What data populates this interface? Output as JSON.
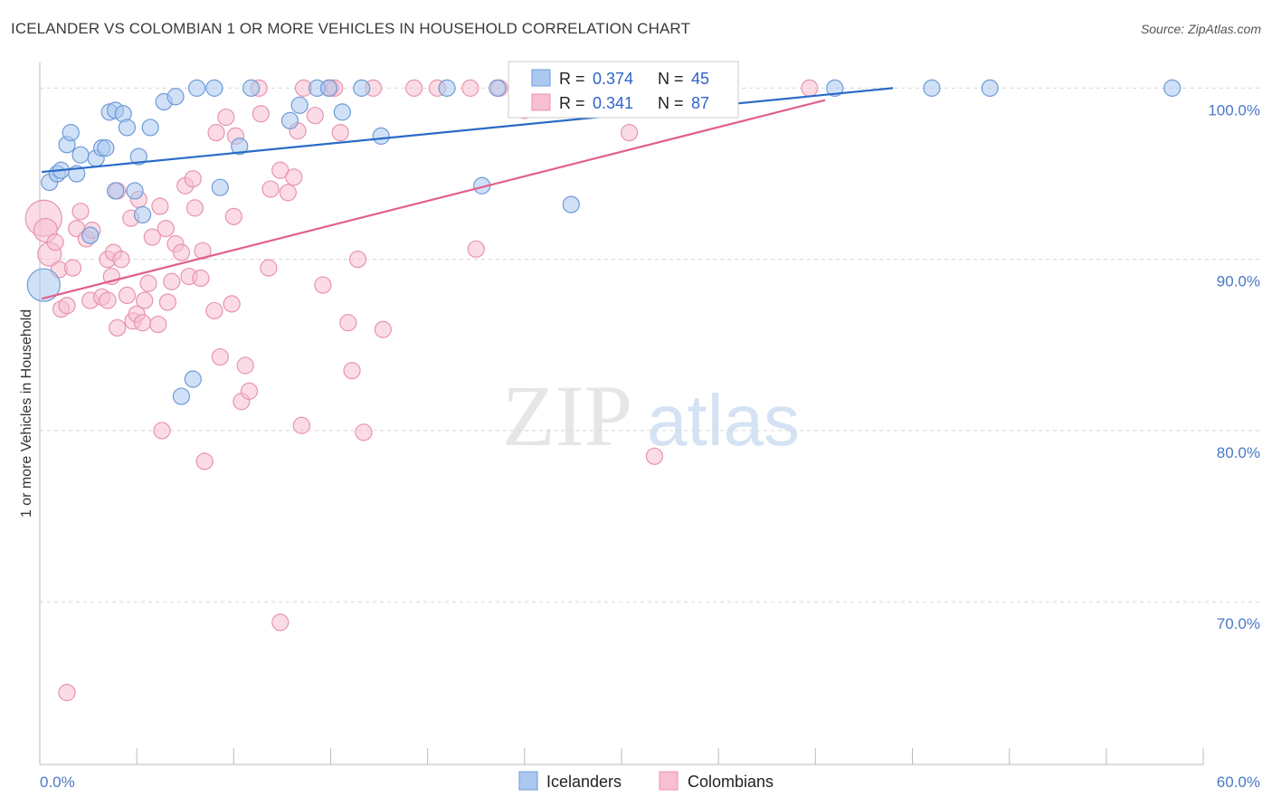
{
  "title": "ICELANDER VS COLOMBIAN 1 OR MORE VEHICLES IN HOUSEHOLD CORRELATION CHART",
  "source": "Source: ZipAtlas.com",
  "watermark_zip": "ZIP",
  "watermark_atlas": "atlas",
  "colors": {
    "icelanders_fill": "#aac8f0",
    "icelanders_stroke": "#6e9ad8",
    "icelanders_line": "#2a6bc8",
    "colombians_fill": "#f7bfd0",
    "colombians_stroke": "#e893b0",
    "colombians_line": "#e0608e",
    "tick_text": "#4a78c8",
    "grid": "#d8d8d8"
  },
  "legend": {
    "r_label": "R =",
    "n_label": "N =",
    "icelanders_r": "0.374",
    "icelanders_n": "45",
    "colombians_r": "0.341",
    "colombians_n": "87"
  },
  "bottom_legend": {
    "icelanders": "Icelanders",
    "colombians": "Colombians"
  },
  "chart_data": {
    "type": "scatter",
    "title": "ICELANDER VS COLOMBIAN 1 OR MORE VEHICLES IN HOUSEHOLD CORRELATION CHART",
    "xlabel": "",
    "ylabel": "1 or more Vehicles in Household",
    "xlim": [
      0,
      60
    ],
    "ylim": [
      60.5,
      101.5
    ],
    "x_tick_labels": [
      "0.0%",
      "60.0%"
    ],
    "y_ticks": [
      70,
      80,
      90,
      100
    ],
    "y_tick_labels": [
      "70.0%",
      "80.0%",
      "90.0%",
      "100.0%"
    ],
    "series": [
      {
        "name": "Icelanders",
        "R": 0.374,
        "N": 45,
        "trend": {
          "x": [
            0.1,
            44.0
          ],
          "y": [
            95.1,
            100.0
          ]
        },
        "points": [
          [
            0.2,
            88.5,
            18
          ],
          [
            0.5,
            94.5,
            9
          ],
          [
            0.9,
            95.0,
            9
          ],
          [
            1.1,
            95.2,
            9
          ],
          [
            1.4,
            96.7,
            9
          ],
          [
            1.6,
            97.4,
            9
          ],
          [
            1.9,
            95.0,
            9
          ],
          [
            2.1,
            96.1,
            9
          ],
          [
            2.6,
            91.4,
            9
          ],
          [
            2.9,
            95.9,
            9
          ],
          [
            3.2,
            96.5,
            9
          ],
          [
            3.4,
            96.5,
            9
          ],
          [
            3.6,
            98.6,
            9
          ],
          [
            3.9,
            98.7,
            9
          ],
          [
            3.9,
            94.0,
            9
          ],
          [
            4.3,
            98.5,
            9
          ],
          [
            4.5,
            97.7,
            9
          ],
          [
            4.9,
            94.0,
            9
          ],
          [
            5.1,
            96.0,
            9
          ],
          [
            5.3,
            92.6,
            9
          ],
          [
            5.7,
            97.7,
            9
          ],
          [
            6.4,
            99.2,
            9
          ],
          [
            7.0,
            99.5,
            9
          ],
          [
            7.3,
            82.0,
            9
          ],
          [
            7.9,
            83.0,
            9
          ],
          [
            8.1,
            100.0,
            9
          ],
          [
            9.0,
            100.0,
            9
          ],
          [
            9.3,
            94.2,
            9
          ],
          [
            10.3,
            96.6,
            9
          ],
          [
            10.9,
            100.0,
            9
          ],
          [
            12.9,
            98.1,
            9
          ],
          [
            13.4,
            99.0,
            9
          ],
          [
            14.3,
            100.0,
            9
          ],
          [
            14.9,
            100.0,
            9
          ],
          [
            15.6,
            98.6,
            9
          ],
          [
            16.6,
            100.0,
            9
          ],
          [
            17.6,
            97.2,
            9
          ],
          [
            21.0,
            100.0,
            9
          ],
          [
            22.8,
            94.3,
            9
          ],
          [
            23.6,
            100.0,
            9
          ],
          [
            27.4,
            93.2,
            9
          ],
          [
            32.5,
            100.0,
            9
          ],
          [
            41.0,
            100.0,
            9
          ],
          [
            46.0,
            100.0,
            9
          ],
          [
            49.0,
            100.0,
            9
          ],
          [
            58.4,
            100.0,
            9
          ]
        ]
      },
      {
        "name": "Colombians",
        "R": 0.341,
        "N": 87,
        "trend": {
          "x": [
            0.1,
            40.5
          ],
          "y": [
            87.7,
            99.3
          ]
        },
        "points": [
          [
            0.2,
            92.4,
            20
          ],
          [
            0.3,
            91.7,
            13
          ],
          [
            0.5,
            90.3,
            13
          ],
          [
            0.8,
            91.0,
            9
          ],
          [
            1.0,
            89.4,
            9
          ],
          [
            1.1,
            87.1,
            9
          ],
          [
            1.4,
            87.3,
            9
          ],
          [
            1.4,
            64.7,
            9
          ],
          [
            1.7,
            89.5,
            9
          ],
          [
            1.9,
            91.8,
            9
          ],
          [
            2.1,
            92.8,
            9
          ],
          [
            2.4,
            91.2,
            9
          ],
          [
            2.6,
            87.6,
            9
          ],
          [
            2.7,
            91.7,
            9
          ],
          [
            3.2,
            87.8,
            9
          ],
          [
            3.5,
            90.0,
            9
          ],
          [
            3.5,
            87.6,
            9
          ],
          [
            3.7,
            89.0,
            9
          ],
          [
            3.8,
            90.4,
            9
          ],
          [
            4.0,
            94.0,
            9
          ],
          [
            4.0,
            86.0,
            9
          ],
          [
            4.2,
            90.0,
            9
          ],
          [
            4.5,
            87.9,
            9
          ],
          [
            4.7,
            92.4,
            9
          ],
          [
            4.8,
            86.4,
            9
          ],
          [
            5.0,
            86.8,
            9
          ],
          [
            5.1,
            93.5,
            9
          ],
          [
            5.3,
            86.3,
            9
          ],
          [
            5.4,
            87.6,
            9
          ],
          [
            5.6,
            88.6,
            9
          ],
          [
            5.8,
            91.3,
            9
          ],
          [
            6.1,
            86.2,
            9
          ],
          [
            6.2,
            93.1,
            9
          ],
          [
            6.3,
            80.0,
            9
          ],
          [
            6.5,
            91.8,
            9
          ],
          [
            6.6,
            87.5,
            9
          ],
          [
            6.8,
            88.7,
            9
          ],
          [
            7.0,
            90.9,
            9
          ],
          [
            7.3,
            90.4,
            9
          ],
          [
            7.5,
            94.3,
            9
          ],
          [
            7.7,
            89.0,
            9
          ],
          [
            7.9,
            94.7,
            9
          ],
          [
            8.0,
            93.0,
            9
          ],
          [
            8.3,
            88.9,
            9
          ],
          [
            8.4,
            90.5,
            9
          ],
          [
            8.5,
            78.2,
            9
          ],
          [
            9.0,
            87.0,
            9
          ],
          [
            9.1,
            97.4,
            9
          ],
          [
            9.3,
            84.3,
            9
          ],
          [
            9.6,
            98.3,
            9
          ],
          [
            9.9,
            87.4,
            9
          ],
          [
            10.0,
            92.5,
            9
          ],
          [
            10.1,
            97.2,
            9
          ],
          [
            10.4,
            81.7,
            9
          ],
          [
            10.6,
            83.8,
            9
          ],
          [
            10.8,
            82.3,
            9
          ],
          [
            11.3,
            100.0,
            9
          ],
          [
            11.4,
            98.5,
            9
          ],
          [
            11.8,
            89.5,
            9
          ],
          [
            11.9,
            94.1,
            9
          ],
          [
            12.4,
            95.2,
            9
          ],
          [
            12.4,
            68.8,
            9
          ],
          [
            12.8,
            93.9,
            9
          ],
          [
            13.1,
            94.8,
            9
          ],
          [
            13.3,
            97.5,
            9
          ],
          [
            13.5,
            80.3,
            9
          ],
          [
            13.6,
            100.0,
            9
          ],
          [
            14.2,
            98.4,
            9
          ],
          [
            14.6,
            88.5,
            9
          ],
          [
            15.0,
            100.0,
            9
          ],
          [
            15.2,
            100.0,
            9
          ],
          [
            15.5,
            97.4,
            9
          ],
          [
            15.9,
            86.3,
            9
          ],
          [
            16.1,
            83.5,
            9
          ],
          [
            16.4,
            90.0,
            9
          ],
          [
            16.7,
            79.9,
            9
          ],
          [
            17.2,
            100.0,
            9
          ],
          [
            17.7,
            85.9,
            9
          ],
          [
            19.3,
            100.0,
            9
          ],
          [
            20.5,
            100.0,
            9
          ],
          [
            22.2,
            100.0,
            9
          ],
          [
            22.5,
            90.6,
            9
          ],
          [
            23.7,
            100.0,
            9
          ],
          [
            25.0,
            98.7,
            9
          ],
          [
            29.4,
            100.0,
            9
          ],
          [
            30.4,
            97.4,
            9
          ],
          [
            31.7,
            78.5,
            9
          ],
          [
            39.7,
            100.0,
            9
          ]
        ]
      }
    ]
  }
}
